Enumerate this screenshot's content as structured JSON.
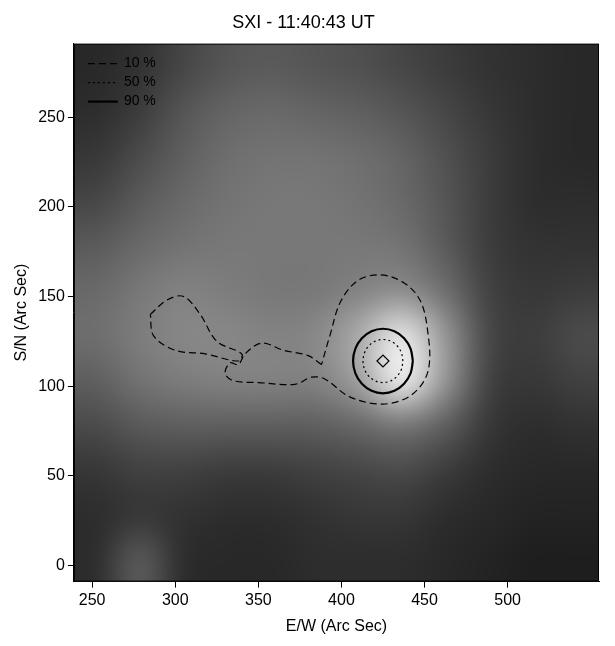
{
  "chart_data": {
    "type": "contour",
    "title": "SXI - 11:40:43 UT",
    "x_label": "E/W (Arc Sec)",
    "y_label": "S/N (Arc Sec)",
    "xlim": [
      239,
      555
    ],
    "ylim": [
      -9,
      291
    ],
    "xticks": [
      250,
      300,
      350,
      400,
      450,
      500
    ],
    "yticks": [
      0,
      50,
      100,
      150,
      200,
      250
    ],
    "grid": false,
    "legend": "upper left",
    "cells": [
      [
        40,
        50,
        70,
        85,
        90,
        85,
        80,
        70,
        60,
        50,
        45,
        40
      ],
      [
        45,
        60,
        85,
        100,
        105,
        100,
        95,
        85,
        70,
        55,
        45,
        40
      ],
      [
        55,
        75,
        95,
        110,
        115,
        115,
        110,
        100,
        80,
        60,
        45,
        40
      ],
      [
        70,
        90,
        105,
        115,
        120,
        120,
        115,
        105,
        85,
        60,
        45,
        45
      ],
      [
        90,
        105,
        115,
        120,
        120,
        120,
        120,
        115,
        90,
        60,
        50,
        50
      ],
      [
        105,
        120,
        130,
        125,
        120,
        120,
        130,
        140,
        110,
        65,
        55,
        60
      ],
      [
        110,
        125,
        135,
        135,
        130,
        135,
        170,
        230,
        150,
        70,
        60,
        75
      ],
      [
        95,
        115,
        125,
        130,
        130,
        130,
        160,
        240,
        150,
        65,
        55,
        65
      ],
      [
        75,
        90,
        95,
        95,
        95,
        95,
        105,
        120,
        95,
        55,
        45,
        50
      ],
      [
        55,
        65,
        65,
        60,
        60,
        65,
        70,
        75,
        60,
        45,
        40,
        40
      ],
      [
        45,
        55,
        50,
        45,
        45,
        50,
        55,
        55,
        45,
        40,
        35,
        35
      ],
      [
        45,
        90,
        45,
        40,
        40,
        45,
        45,
        45,
        40,
        35,
        30,
        30
      ]
    ],
    "series": [
      {
        "name": "10 %",
        "line_style": "dashed",
        "color": "#000000",
        "paths": [
          {
            "x": [
              388,
              380,
              365,
              352,
              342,
              338,
              333,
              330,
              335,
              350,
              372,
              382,
              390,
              405,
              425,
              442,
              452,
              452,
              446,
              430,
              412,
              400,
              393,
              388
            ],
            "y": [
              112,
              117,
              120,
              124,
              118,
              112,
              113,
              107,
              103,
              102,
              101,
              105,
              104,
              94,
              90,
              95,
              108,
              130,
              150,
              161,
              160,
              148,
              128,
              112
            ]
          },
          {
            "x": [
              285,
              295,
              305,
              315,
              325,
              340,
              338,
              318,
              300,
              287,
              285
            ],
            "y": [
              140,
              148,
              150,
              140,
              125,
              118,
              114,
              118,
              120,
              128,
              140
            ]
          }
        ]
      },
      {
        "name": "50 %",
        "line_style": "dotted",
        "color": "#000000",
        "paths": [
          {
            "x": [
              437,
              436.1,
              433.5,
              429.6,
              425,
              420.4,
              416.5,
              413.9,
              413,
              413.9,
              416.5,
              420.4,
              425,
              429.6,
              433.5,
              436.1,
              437
            ],
            "y": [
              114,
              118.6,
              122.5,
              125.1,
              126,
              125.1,
              122.5,
              118.6,
              114,
              109.4,
              105.5,
              102.9,
              102,
              102.9,
              105.5,
              109.4,
              114
            ]
          }
        ]
      },
      {
        "name": "90 %",
        "line_style": "solid",
        "color": "#000000",
        "paths": [
          {
            "x": [
              443,
              441.6,
              437.7,
              431.9,
              425,
              418.1,
              412.3,
              408.4,
              407,
              408.4,
              412.3,
              418.1,
              425,
              431.9,
              437.7,
              441.6,
              443
            ],
            "y": [
              114,
              120.9,
              126.7,
              130.6,
              132,
              130.6,
              126.7,
              120.9,
              114,
              107.1,
              101.3,
              97.4,
              96,
              97.4,
              101.3,
              107.1,
              114
            ]
          }
        ]
      },
      {
        "type": "scatter",
        "marker": "diamond",
        "color": "#000000",
        "x": [
          425
        ],
        "y": [
          114
        ]
      }
    ]
  }
}
